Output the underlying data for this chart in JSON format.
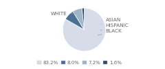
{
  "labels": [
    "WHITE",
    "ASIAN",
    "HISPANIC",
    "BLACK"
  ],
  "values": [
    83.2,
    8.0,
    7.2,
    1.6
  ],
  "colors": [
    "#d6dde8",
    "#4a7094",
    "#a0b4c8",
    "#2e4a6b"
  ],
  "legend_labels": [
    "83.2%",
    "8.0%",
    "7.2%",
    "1.6%"
  ],
  "legend_colors": [
    "#d6dde8",
    "#4a7094",
    "#a0b4c8",
    "#2e4a6b"
  ],
  "label_fontsize": 5.2,
  "legend_fontsize": 5.0,
  "startangle": 90
}
